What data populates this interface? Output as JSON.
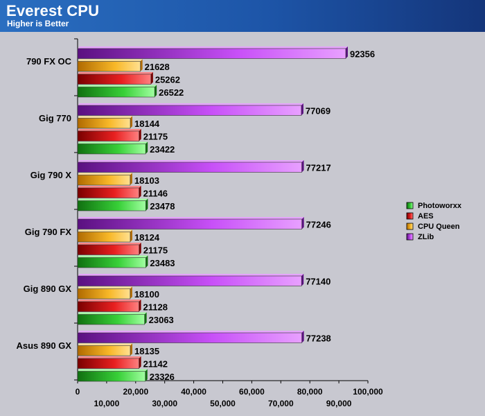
{
  "header": {
    "title": "Everest CPU",
    "subtitle": "Higher is Better"
  },
  "chart_data": {
    "type": "bar",
    "orientation": "horizontal",
    "title": "Everest CPU",
    "subtitle": "Higher is Better",
    "categories": [
      "790 FX OC",
      "Gig 770",
      "Gig 790 X",
      "Gig 790 FX",
      "Gig 890 GX",
      "Asus 890 GX"
    ],
    "series": [
      {
        "name": "ZLib",
        "color": "#b030e0",
        "values": [
          92356,
          77069,
          77217,
          77246,
          77140,
          77238
        ]
      },
      {
        "name": "CPU Queen",
        "color": "#f5b020",
        "values": [
          21628,
          18144,
          18103,
          18124,
          18100,
          18135
        ]
      },
      {
        "name": "AES",
        "color": "#e01818",
        "values": [
          25262,
          21175,
          21146,
          21175,
          21128,
          21142
        ]
      },
      {
        "name": "Photoworxx",
        "color": "#30c030",
        "values": [
          26522,
          23422,
          23478,
          23483,
          23063,
          23326
        ]
      }
    ],
    "legend_order": [
      "Photoworxx",
      "AES",
      "CPU Queen",
      "ZLib"
    ],
    "legend_position": "right",
    "xlim": [
      0,
      100000
    ],
    "x_ticks": [
      "0",
      "10,000",
      "20,000",
      "30,000",
      "40,000",
      "50,000",
      "60,000",
      "70,000",
      "80,000",
      "90,000",
      "100,000"
    ],
    "grid": false
  }
}
